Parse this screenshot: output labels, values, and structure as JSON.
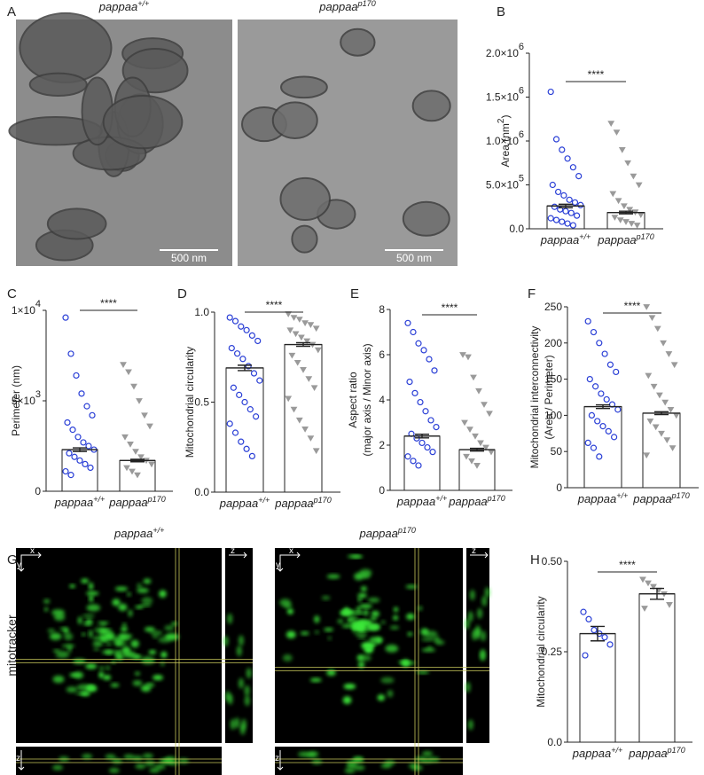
{
  "figure": {
    "panel_labels": [
      "A",
      "B",
      "C",
      "D",
      "E",
      "F",
      "G",
      "H"
    ],
    "panel_A": {
      "titles": [
        {
          "base": "pappaa",
          "sup": "+/+"
        },
        {
          "base": "pappaa",
          "sup": "p170"
        }
      ],
      "scale_bars": [
        "500 nm",
        "500 nm"
      ]
    },
    "panel_G": {
      "titles": [
        {
          "base": "pappaa",
          "sup": "+/+"
        },
        {
          "base": "pappaa",
          "sup": "p170"
        }
      ],
      "row_label": "mitotracker",
      "axis_letters": [
        "x",
        "y",
        "z"
      ]
    }
  },
  "chart_data": [
    {
      "type": "bar",
      "panel": "B",
      "ylabel": [
        {
          "text": "Area (nm",
          "sup": "2",
          "tail": ")"
        }
      ],
      "categories": [
        {
          "base": "pappaa",
          "sup": "+/+"
        },
        {
          "base": "pappaa",
          "sup": "p170"
        }
      ],
      "values": [
        260000,
        185000
      ],
      "errors": [
        20000,
        15000
      ],
      "colors": [
        "#2a3fd6",
        "#9a9a9a"
      ],
      "markers": [
        "circle",
        "triangle"
      ],
      "points": [
        [
          1560000,
          1020000,
          900000,
          800000,
          700000,
          600000,
          500000,
          420000,
          380000,
          330000,
          300000,
          270000,
          250000,
          220000,
          200000,
          180000,
          150000,
          120000,
          100000,
          80000,
          60000,
          40000
        ],
        [
          1200000,
          1100000,
          900000,
          750000,
          600000,
          500000,
          400000,
          320000,
          260000,
          220000,
          190000,
          160000,
          130000,
          100000,
          80000,
          60000,
          40000
        ]
      ],
      "ylim": [
        0,
        2000000
      ],
      "yticks": [
        {
          "value": 0,
          "label": "0.0"
        },
        {
          "value": 500000,
          "label": "5.0×10",
          "exp": "5"
        },
        {
          "value": 1000000,
          "label": "1.0×10",
          "exp": "6"
        },
        {
          "value": 1500000,
          "label": "1.5×10",
          "exp": "6"
        },
        {
          "value": 2000000,
          "label": "2.0×10",
          "exp": "6"
        }
      ],
      "significance": "****"
    },
    {
      "type": "bar",
      "panel": "C",
      "ylabel": [
        {
          "text": "Perimeter (nm)"
        }
      ],
      "categories": [
        {
          "base": "pappaa",
          "sup": "+/+"
        },
        {
          "base": "pappaa",
          "sup": "p170"
        }
      ],
      "values": [
        2300,
        1700
      ],
      "errors": [
        100,
        70
      ],
      "colors": [
        "#2a3fd6",
        "#9a9a9a"
      ],
      "markers": [
        "circle",
        "triangle"
      ],
      "points": [
        [
          9600,
          7600,
          6400,
          5400,
          4700,
          4200,
          3800,
          3400,
          3000,
          2700,
          2500,
          2300,
          2100,
          1900,
          1700,
          1500,
          1300,
          1100,
          900
        ],
        [
          7000,
          6600,
          5800,
          5000,
          4200,
          3600,
          3000,
          2600,
          2200,
          1900,
          1700,
          1500,
          1300,
          1100,
          900
        ]
      ],
      "ylim": [
        0,
        10000
      ],
      "yticks": [
        0,
        {
          "value": 5000,
          "label": "5×10",
          "exp": "3"
        },
        {
          "value": 10000,
          "label": "1×10",
          "exp": "4"
        }
      ],
      "significance": "****"
    },
    {
      "type": "bar",
      "panel": "D",
      "ylabel": [
        {
          "text": "Mitochondrial circularity"
        }
      ],
      "categories": [
        {
          "base": "pappaa",
          "sup": "+/+"
        },
        {
          "base": "pappaa",
          "sup": "p170"
        }
      ],
      "values": [
        0.69,
        0.82
      ],
      "errors": [
        0.015,
        0.01
      ],
      "colors": [
        "#2a3fd6",
        "#9a9a9a"
      ],
      "markers": [
        "circle",
        "triangle"
      ],
      "points": [
        [
          0.97,
          0.95,
          0.92,
          0.9,
          0.87,
          0.84,
          0.8,
          0.77,
          0.74,
          0.7,
          0.66,
          0.62,
          0.58,
          0.54,
          0.5,
          0.46,
          0.42,
          0.38,
          0.33,
          0.28,
          0.24,
          0.2
        ],
        [
          0.99,
          0.97,
          0.96,
          0.94,
          0.93,
          0.91,
          0.9,
          0.88,
          0.86,
          0.84,
          0.82,
          0.79,
          0.76,
          0.72,
          0.68,
          0.63,
          0.58,
          0.52,
          0.46,
          0.4,
          0.35,
          0.3,
          0.23
        ]
      ],
      "ylim": [
        0,
        1
      ],
      "yticks": [
        {
          "value": 0,
          "label": "0.0"
        },
        0.5,
        {
          "value": 1,
          "label": "1.0"
        }
      ],
      "significance": "****"
    },
    {
      "type": "bar",
      "panel": "E",
      "ylabel": [
        {
          "text": "Aspect ratio"
        },
        {
          "text": "(major axis / Minor axis)"
        }
      ],
      "categories": [
        {
          "base": "pappaa",
          "sup": "+/+"
        },
        {
          "base": "pappaa",
          "sup": "p170"
        }
      ],
      "values": [
        2.4,
        1.8
      ],
      "errors": [
        0.08,
        0.06
      ],
      "colors": [
        "#2a3fd6",
        "#9a9a9a"
      ],
      "markers": [
        "circle",
        "triangle"
      ],
      "points": [
        [
          7.4,
          7.0,
          6.5,
          6.2,
          5.8,
          5.3,
          4.8,
          4.3,
          3.9,
          3.5,
          3.1,
          2.8,
          2.5,
          2.3,
          2.1,
          1.9,
          1.7,
          1.5,
          1.3,
          1.1
        ],
        [
          6.0,
          5.9,
          5.0,
          4.4,
          3.8,
          3.4,
          3.0,
          2.7,
          2.4,
          2.1,
          1.9,
          1.7,
          1.5,
          1.3,
          1.1
        ]
      ],
      "ylim": [
        0,
        8
      ],
      "yticks": [
        0,
        2,
        4,
        6,
        8
      ],
      "significance": "****"
    },
    {
      "type": "bar",
      "panel": "F",
      "ylabel": [
        {
          "text": "Mitochondrial interconnectivity"
        },
        {
          "text": "(Area / Perimeter)"
        }
      ],
      "categories": [
        {
          "base": "pappaa",
          "sup": "+/+"
        },
        {
          "base": "pappaa",
          "sup": "p170"
        }
      ],
      "values": [
        112,
        103
      ],
      "errors": [
        2.5,
        2
      ],
      "colors": [
        "#2a3fd6",
        "#9a9a9a"
      ],
      "markers": [
        "circle",
        "triangle"
      ],
      "points": [
        [
          230,
          215,
          200,
          185,
          170,
          160,
          150,
          140,
          130,
          122,
          115,
          108,
          100,
          92,
          85,
          78,
          70,
          62,
          55,
          43
        ],
        [
          250,
          235,
          220,
          200,
          185,
          170,
          155,
          140,
          128,
          118,
          108,
          100,
          92,
          84,
          75,
          66,
          55,
          45
        ]
      ],
      "ylim": [
        0,
        250
      ],
      "yticks": [
        0,
        50,
        100,
        150,
        200,
        250
      ],
      "significance": "****"
    },
    {
      "type": "bar",
      "panel": "H",
      "ylabel": [
        {
          "text": "Mitochondrial circularity"
        }
      ],
      "categories": [
        {
          "base": "pappaa",
          "sup": "+/+"
        },
        {
          "base": "pappaa",
          "sup": "p170"
        }
      ],
      "values": [
        0.3,
        0.41
      ],
      "errors": [
        0.02,
        0.015
      ],
      "colors": [
        "#2a3fd6",
        "#9a9a9a"
      ],
      "markers": [
        "circle",
        "triangle"
      ],
      "points": [
        [
          0.36,
          0.34,
          0.31,
          0.3,
          0.29,
          0.27,
          0.24
        ],
        [
          0.45,
          0.44,
          0.43,
          0.42,
          0.41,
          0.38,
          0.37
        ]
      ],
      "ylim": [
        0,
        0.5
      ],
      "yticks": [
        {
          "value": 0,
          "label": "0.0"
        },
        0.25,
        {
          "value": 0.5,
          "label": "0.50"
        }
      ],
      "significance": "****"
    }
  ]
}
